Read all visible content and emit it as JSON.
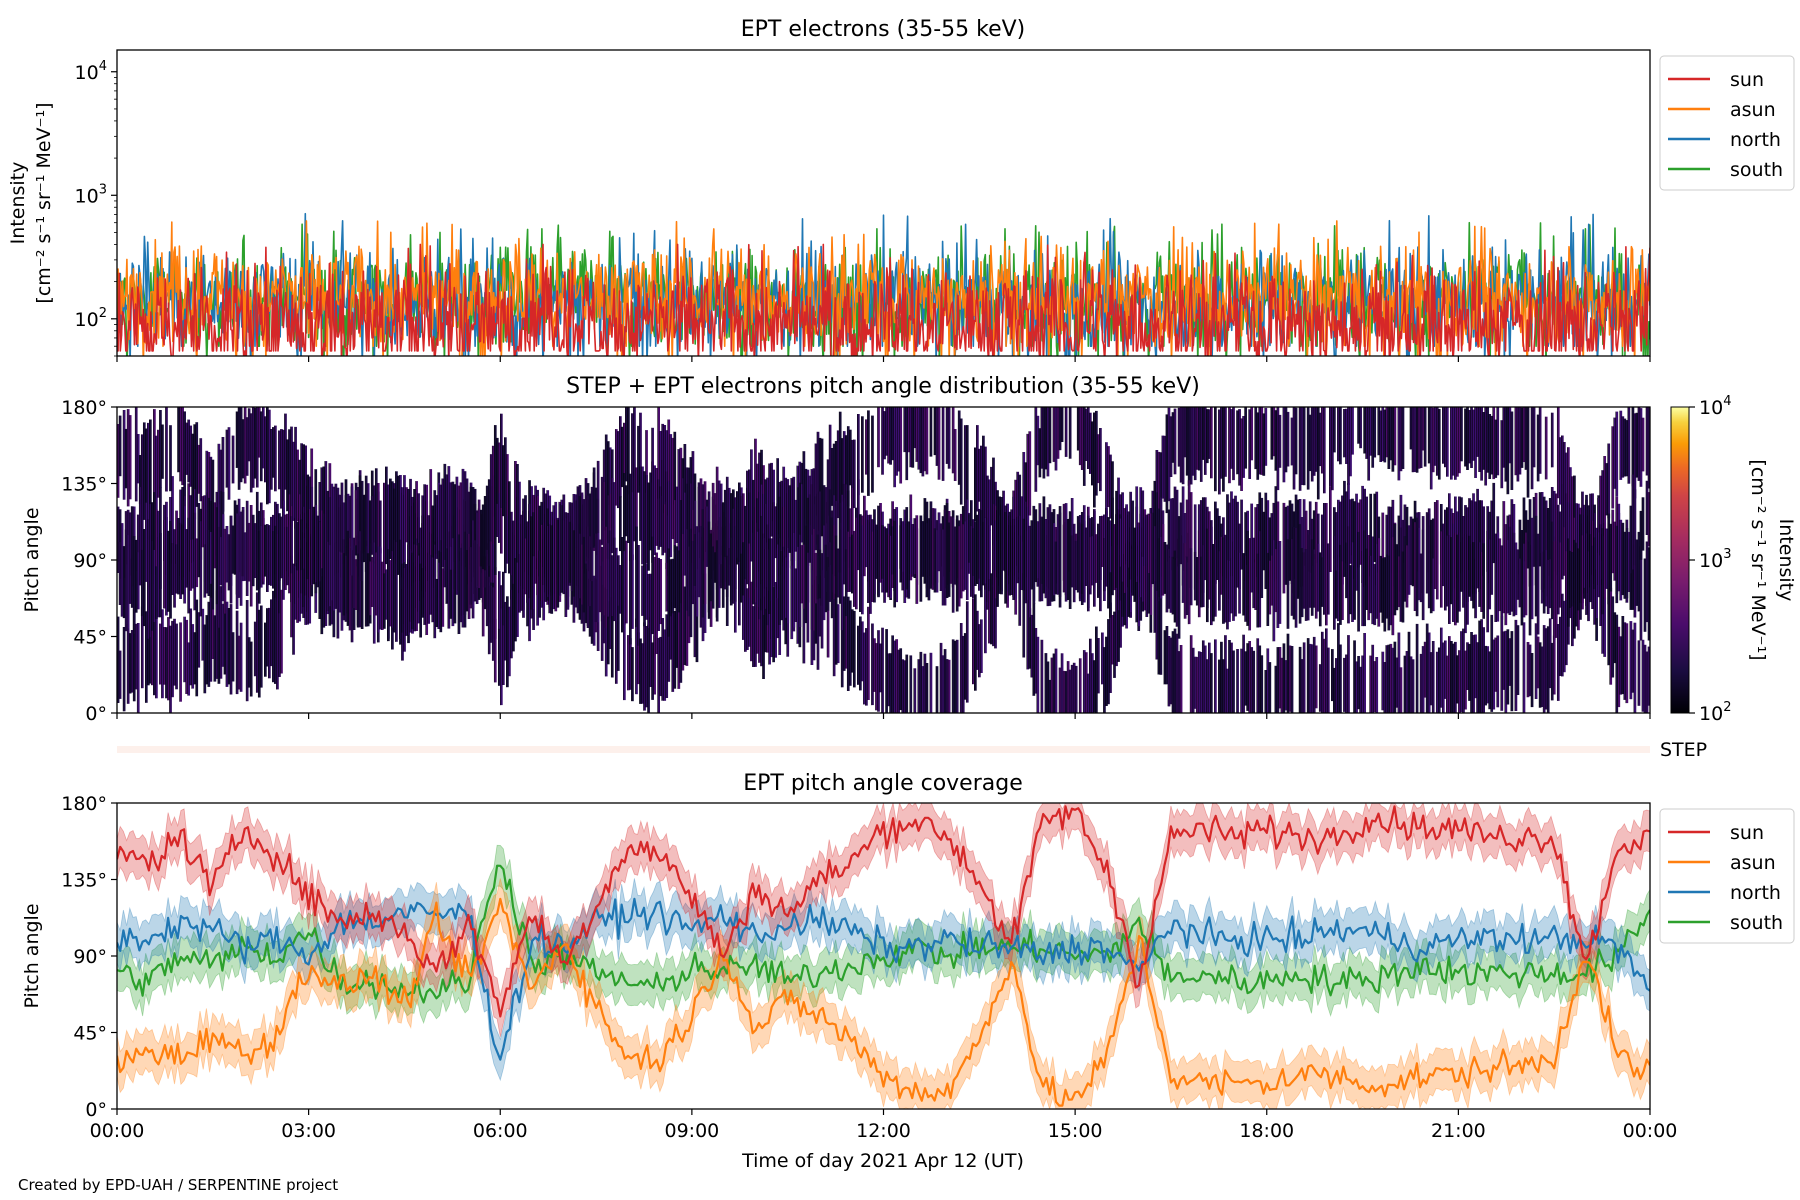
{
  "figure": {
    "credit": "Created by EPD-UAH / SERPENTINE project",
    "xlabel": "Time of day 2021 Apr 12 (UT)",
    "x_ticks": [
      "00:00",
      "03:00",
      "06:00",
      "09:00",
      "12:00",
      "15:00",
      "18:00",
      "21:00",
      "00:00"
    ],
    "colors": {
      "sun": "#d62728",
      "asun": "#ff7f0e",
      "north": "#1f77b4",
      "south": "#2ca02c"
    }
  },
  "chart_data": [
    {
      "type": "line",
      "title": "EPT electrons (35-55 keV)",
      "ylabel_line1": "Intensity",
      "ylabel_line2": "[cm⁻² s⁻¹ sr⁻¹ MeV⁻¹]",
      "y_scale": "log",
      "ylim": [
        50,
        15000
      ],
      "y_ticks": [
        {
          "value": 100,
          "base": "10",
          "exp": "2"
        },
        {
          "value": 1000,
          "base": "10",
          "exp": "3"
        },
        {
          "value": 10000,
          "base": "10",
          "exp": "4"
        }
      ],
      "x_range_hours": [
        0,
        24
      ],
      "legend_position": "right",
      "series": [
        {
          "name": "sun",
          "mean": 90,
          "spread": 2.2,
          "lo": 55,
          "hi": 400
        },
        {
          "name": "asun",
          "mean": 150,
          "spread": 2.0,
          "lo": 60,
          "hi": 620
        },
        {
          "name": "north",
          "mean": 140,
          "spread": 2.0,
          "lo": 60,
          "hi": 720
        },
        {
          "name": "south",
          "mean": 140,
          "spread": 2.0,
          "lo": 60,
          "hi": 600
        }
      ]
    },
    {
      "type": "heatmap",
      "title": "STEP + EPT electrons pitch angle distribution (35-55 keV)",
      "ylabel": "Pitch angle",
      "ylim": [
        0,
        180
      ],
      "y_ticks": [
        "0°",
        "45°",
        "90°",
        "135°",
        "180°"
      ],
      "colorbar": {
        "label_line1": "Intensity",
        "label_line2": "[cm⁻² s⁻¹ sr⁻¹ MeV⁻¹]",
        "scale": "log",
        "range": [
          100,
          10000
        ],
        "ticks": [
          {
            "value": 100,
            "base": "10",
            "exp": "2"
          },
          {
            "value": 1000,
            "base": "10",
            "exp": "3"
          },
          {
            "value": 10000,
            "base": "10",
            "exp": "4"
          }
        ],
        "colormap": "inferno"
      }
    },
    {
      "type": "bar",
      "label": "STEP",
      "color": "#fdf0eb"
    },
    {
      "type": "area",
      "title": "EPT pitch angle coverage",
      "ylabel": "Pitch angle",
      "ylim": [
        0,
        180
      ],
      "y_ticks": [
        "0°",
        "45°",
        "90°",
        "135°",
        "180°"
      ],
      "legend_position": "right",
      "x_hours": [
        0,
        0.5,
        1,
        1.5,
        2,
        2.5,
        3,
        3.5,
        4,
        4.5,
        5,
        5.5,
        6,
        6.5,
        7,
        7.5,
        8,
        8.5,
        9,
        9.5,
        10,
        10.5,
        11,
        11.5,
        12,
        12.5,
        13,
        13.5,
        14,
        14.5,
        15,
        15.5,
        16,
        16.5,
        17,
        17.5,
        18,
        18.5,
        19,
        19.5,
        20,
        20.5,
        21,
        21.5,
        22,
        22.5,
        23,
        23.5,
        24
      ],
      "band_half_width": 12,
      "series": [
        {
          "name": "sun",
          "values": [
            150,
            145,
            160,
            130,
            165,
            150,
            125,
            110,
            115,
            105,
            80,
            110,
            60,
            115,
            85,
            120,
            155,
            150,
            125,
            90,
            130,
            115,
            135,
            145,
            165,
            170,
            160,
            135,
            95,
            170,
            175,
            140,
            75,
            160,
            165,
            160,
            165,
            160,
            160,
            170,
            170,
            165,
            165,
            160,
            160,
            160,
            85,
            155,
            160
          ]
        },
        {
          "name": "asun",
          "values": [
            25,
            35,
            30,
            45,
            30,
            45,
            85,
            70,
            80,
            60,
            110,
            75,
            120,
            70,
            100,
            60,
            30,
            30,
            55,
            95,
            45,
            65,
            55,
            40,
            20,
            10,
            10,
            40,
            90,
            10,
            5,
            30,
            100,
            20,
            15,
            15,
            15,
            20,
            20,
            15,
            15,
            20,
            20,
            25,
            25,
            30,
            95,
            30,
            20
          ]
        },
        {
          "name": "north",
          "values": [
            100,
            100,
            110,
            105,
            95,
            100,
            90,
            110,
            110,
            115,
            115,
            115,
            30,
            100,
            95,
            110,
            115,
            115,
            105,
            115,
            100,
            110,
            110,
            105,
            95,
            95,
            100,
            95,
            95,
            90,
            95,
            95,
            80,
            110,
            100,
            100,
            100,
            100,
            105,
            105,
            100,
            95,
            100,
            100,
            100,
            100,
            100,
            95,
            70
          ]
        },
        {
          "name": "south",
          "values": [
            80,
            75,
            90,
            85,
            95,
            90,
            105,
            75,
            75,
            70,
            70,
            75,
            150,
            85,
            90,
            80,
            75,
            70,
            85,
            80,
            85,
            75,
            80,
            85,
            90,
            95,
            90,
            95,
            95,
            95,
            90,
            90,
            110,
            75,
            80,
            75,
            75,
            80,
            75,
            75,
            80,
            85,
            80,
            80,
            80,
            80,
            80,
            90,
            115
          ]
        }
      ]
    }
  ]
}
